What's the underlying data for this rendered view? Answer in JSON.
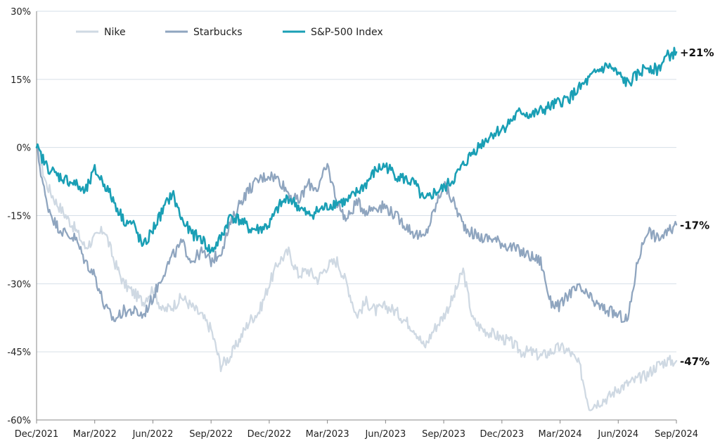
{
  "chart_data": {
    "type": "line",
    "title": "",
    "xlabel": "",
    "ylabel": "",
    "ylim": [
      -60,
      30
    ],
    "yticks": [
      30,
      15,
      0,
      -15,
      -30,
      -45,
      -60
    ],
    "ytick_labels": [
      "30%",
      "15%",
      "0%",
      "-15%",
      "-30%",
      "-45%",
      "-60%"
    ],
    "xlim": [
      0,
      33
    ],
    "xticks": [
      0,
      3,
      6,
      9,
      12,
      15,
      18,
      21,
      24,
      27,
      30,
      33
    ],
    "xtick_labels": [
      "Dec/2021",
      "Mar/2022",
      "Jun/2022",
      "Sep/2022",
      "Dec/2022",
      "Mar/2023",
      "Jun/2023",
      "Sep/2023",
      "Dec/2023",
      "Mar/2024",
      "Jun/2024",
      "Sep/2024"
    ],
    "grid": true,
    "legend_position": "top-left",
    "series": [
      {
        "name": "Nike",
        "color": "#cfd9e3",
        "end_label": "-47%",
        "x": [
          0,
          0.5,
          1,
          1.5,
          2,
          2.5,
          3,
          3.5,
          4,
          4.5,
          5,
          5.5,
          6,
          6.5,
          7,
          7.5,
          8,
          8.5,
          9,
          9.5,
          10,
          10.5,
          11,
          11.5,
          12,
          12.5,
          13,
          13.5,
          14,
          14.5,
          15,
          15.5,
          16,
          16.5,
          17,
          17.5,
          18,
          18.5,
          19,
          19.5,
          20,
          20.5,
          21,
          21.5,
          22,
          22.5,
          23,
          23.5,
          24,
          24.5,
          25,
          25.5,
          26,
          26.5,
          27,
          27.5,
          28,
          28.5,
          29,
          29.5,
          30,
          30.5,
          31,
          31.5,
          32,
          32.5,
          33
        ],
        "values": [
          0,
          -8,
          -12,
          -15,
          -18,
          -22,
          -20,
          -18,
          -25,
          -30,
          -32,
          -34,
          -31,
          -36,
          -35,
          -33,
          -35,
          -37,
          -40,
          -48,
          -46,
          -42,
          -38,
          -36,
          -30,
          -25,
          -23,
          -28,
          -27,
          -29,
          -26,
          -25,
          -30,
          -37,
          -34,
          -36,
          -35,
          -36,
          -38,
          -40,
          -44,
          -40,
          -37,
          -33,
          -27,
          -38,
          -40,
          -41,
          -42,
          -43,
          -45,
          -45,
          -46,
          -45,
          -44,
          -45,
          -48,
          -57,
          -56,
          -55,
          -53,
          -52,
          -51,
          -50,
          -48,
          -47,
          -47
        ]
      },
      {
        "name": "Starbucks",
        "color": "#8fa5bf",
        "end_label": "-17%",
        "x": [
          0,
          0.5,
          1,
          1.5,
          2,
          2.5,
          3,
          3.5,
          4,
          4.5,
          5,
          5.5,
          6,
          6.5,
          7,
          7.5,
          8,
          8.5,
          9,
          9.5,
          10,
          10.5,
          11,
          11.5,
          12,
          12.5,
          13,
          13.5,
          14,
          14.5,
          15,
          15.5,
          16,
          16.5,
          17,
          17.5,
          18,
          18.5,
          19,
          19.5,
          20,
          20.5,
          21,
          21.5,
          22,
          22.5,
          23,
          23.5,
          24,
          24.5,
          25,
          25.5,
          26,
          26.5,
          27,
          27.5,
          28,
          28.5,
          29,
          29.5,
          30,
          30.5,
          31,
          31.5,
          32,
          32.5,
          33
        ],
        "values": [
          0,
          -12,
          -17,
          -19,
          -20,
          -25,
          -28,
          -35,
          -38,
          -36,
          -36,
          -37,
          -33,
          -28,
          -24,
          -21,
          -25,
          -23,
          -25,
          -23,
          -17,
          -12,
          -9,
          -7,
          -6,
          -7,
          -10,
          -12,
          -8,
          -9,
          -4,
          -12,
          -16,
          -12,
          -14,
          -13,
          -13,
          -15,
          -17,
          -19,
          -20,
          -14,
          -8,
          -12,
          -17,
          -19,
          -20,
          -20,
          -21,
          -22,
          -23,
          -24,
          -25,
          -34,
          -35,
          -32,
          -31,
          -33,
          -35,
          -36,
          -37,
          -38,
          -25,
          -18,
          -20,
          -19,
          -17
        ]
      },
      {
        "name": "S&P-500 Index",
        "color": "#1a9fb5",
        "end_label": "+21%",
        "x": [
          0,
          0.5,
          1,
          1.5,
          2,
          2.5,
          3,
          3.5,
          4,
          4.5,
          5,
          5.5,
          6,
          6.5,
          7,
          7.5,
          8,
          8.5,
          9,
          9.5,
          10,
          10.5,
          11,
          11.5,
          12,
          12.5,
          13,
          13.5,
          14,
          14.5,
          15,
          15.5,
          16,
          16.5,
          17,
          17.5,
          18,
          18.5,
          19,
          19.5,
          20,
          20.5,
          21,
          21.5,
          22,
          22.5,
          23,
          23.5,
          24,
          24.5,
          25,
          25.5,
          26,
          26.5,
          27,
          27.5,
          28,
          28.5,
          29,
          29.5,
          30,
          30.5,
          31,
          31.5,
          32,
          32.5,
          33
        ],
        "values": [
          0,
          -4,
          -6,
          -7,
          -8,
          -10,
          -5,
          -8,
          -12,
          -16,
          -17,
          -22,
          -18,
          -14,
          -10,
          -16,
          -19,
          -20,
          -23,
          -20,
          -15,
          -16,
          -18,
          -18,
          -17,
          -13,
          -11,
          -13,
          -15,
          -14,
          -13,
          -12,
          -12,
          -10,
          -8,
          -5,
          -4,
          -6,
          -7,
          -8,
          -12,
          -10,
          -9,
          -7,
          -4,
          -1,
          1,
          3,
          4,
          6,
          8,
          7,
          8,
          9,
          10,
          11,
          13,
          15,
          17,
          18,
          16,
          14,
          16,
          18,
          17,
          20,
          21
        ]
      }
    ]
  }
}
